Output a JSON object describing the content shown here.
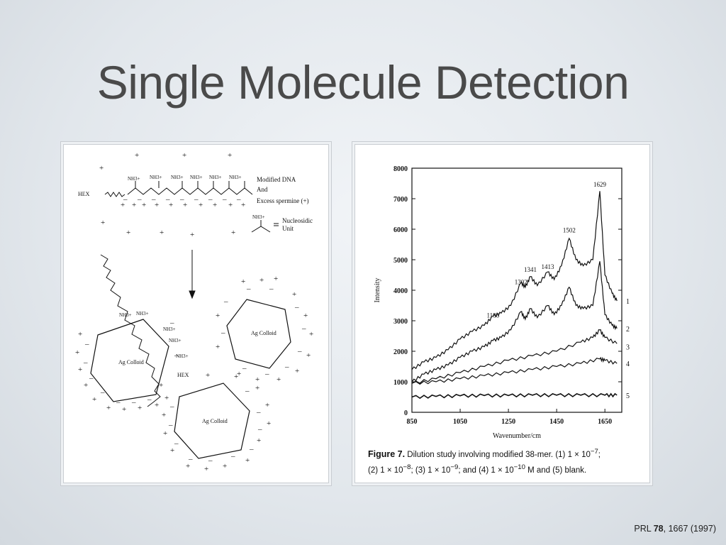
{
  "slide": {
    "title": "Single Molecule Detection",
    "citation": {
      "prefix": "PRL ",
      "volume": "78",
      "suffix": ", 1667 (1997)"
    }
  },
  "schematic": {
    "strand_label": "HEX",
    "amine_label": "NH3+",
    "legend": {
      "line1": "Modified DNA",
      "line2": "And",
      "line3": "Excess spermine (+)"
    },
    "unit_label": {
      "line1": "Nucleosidic",
      "line2": "Unit"
    },
    "colloid_label": "Ag Colloid"
  },
  "figure": {
    "caption_fig": "Figure 7.",
    "caption_line1": "Dilution study involving modified 38-mer. (1) 1 × 10",
    "caption_line1_exp": "−7",
    "caption_line1_end": ";",
    "caption_line2_a": "(2) 1 × 10",
    "caption_line2_exp1": "−8",
    "caption_line2_b": "; (3) 1 × 10",
    "caption_line2_exp2": "−9",
    "caption_line2_c": "; and (4) 1 × 10",
    "caption_line2_exp3": "−10",
    "caption_line2_d": " M and (5) blank."
  },
  "chart_data": {
    "type": "line",
    "xlabel": "Wavenumber/cm",
    "ylabel": "Intensity",
    "xlim": [
      850,
      1720
    ],
    "ylim": [
      0,
      8000
    ],
    "x_ticks": [
      850,
      1050,
      1250,
      1450,
      1650
    ],
    "y_ticks": [
      0,
      1000,
      2000,
      3000,
      4000,
      5000,
      6000,
      7000,
      8000
    ],
    "peak_labels": [
      {
        "x": 1186,
        "y": 3100,
        "label": "1186"
      },
      {
        "x": 1302,
        "y": 4200,
        "label": "1302"
      },
      {
        "x": 1341,
        "y": 4600,
        "label": "1341"
      },
      {
        "x": 1413,
        "y": 4700,
        "label": "1413"
      },
      {
        "x": 1502,
        "y": 5900,
        "label": "1502"
      },
      {
        "x": 1629,
        "y": 7400,
        "label": "1629"
      }
    ],
    "series": [
      {
        "name": "1",
        "x": [
          850,
          900,
          950,
          1000,
          1050,
          1100,
          1150,
          1186,
          1220,
          1260,
          1302,
          1320,
          1341,
          1370,
          1413,
          1440,
          1470,
          1502,
          1530,
          1560,
          1600,
          1629,
          1650,
          1680,
          1700
        ],
        "y": [
          1400,
          1650,
          1800,
          2050,
          2400,
          2650,
          2850,
          3150,
          3250,
          3500,
          4250,
          4100,
          4450,
          4150,
          4600,
          4350,
          4800,
          5700,
          5000,
          4800,
          5000,
          7250,
          4500,
          3900,
          3650
        ]
      },
      {
        "name": "2",
        "x": [
          850,
          900,
          950,
          1000,
          1050,
          1100,
          1150,
          1186,
          1220,
          1260,
          1302,
          1320,
          1341,
          1370,
          1413,
          1440,
          1470,
          1502,
          1530,
          1560,
          1600,
          1629,
          1650,
          1680,
          1700
        ],
        "y": [
          1000,
          1250,
          1400,
          1550,
          1800,
          2000,
          2150,
          2350,
          2450,
          2700,
          3300,
          3050,
          3400,
          3100,
          3500,
          3200,
          3500,
          4100,
          3500,
          3400,
          3500,
          4950,
          3200,
          2850,
          2750
        ]
      },
      {
        "name": "3",
        "x": [
          850,
          950,
          1050,
          1150,
          1250,
          1350,
          1450,
          1550,
          1600,
          1629,
          1650,
          1700
        ],
        "y": [
          950,
          1100,
          1300,
          1500,
          1700,
          1850,
          2000,
          2300,
          2450,
          2700,
          2450,
          2250
        ]
      },
      {
        "name": "4",
        "x": [
          850,
          950,
          1050,
          1150,
          1250,
          1350,
          1450,
          1550,
          1629,
          1650,
          1700
        ],
        "y": [
          950,
          1000,
          1100,
          1200,
          1300,
          1400,
          1500,
          1600,
          1750,
          1700,
          1600
        ]
      },
      {
        "name": "5",
        "x": [
          850,
          950,
          1050,
          1150,
          1250,
          1350,
          1450,
          1550,
          1650,
          1700
        ],
        "y": [
          500,
          520,
          540,
          550,
          550,
          560,
          560,
          560,
          560,
          560
        ]
      }
    ]
  }
}
